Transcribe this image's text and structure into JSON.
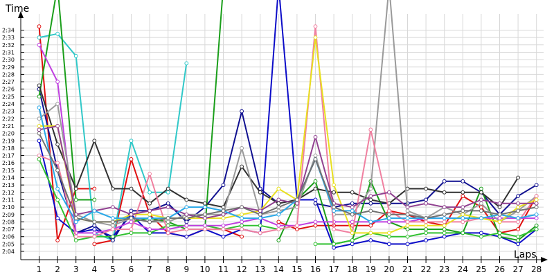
{
  "chart_data": {
    "type": "line",
    "ylabel": "Time",
    "xlabel": "Laps",
    "x_ticks": [
      "1",
      "2",
      "3",
      "4",
      "5",
      "6",
      "7",
      "8",
      "9",
      "10",
      "11",
      "12",
      "13",
      "14",
      "15",
      "16",
      "17",
      "18",
      "19",
      "20",
      "21",
      "22",
      "23",
      "24",
      "25",
      "26",
      "27",
      "28"
    ],
    "y_ticks": [
      "2:04",
      "2:05",
      "2:06",
      "2:07",
      "2:08",
      "2:09",
      "2:10",
      "2:11",
      "2:12",
      "2:13",
      "2:14",
      "2:15",
      "2:16",
      "2:17",
      "2:18",
      "2:19",
      "2:20",
      "2:21",
      "2:22",
      "2:23",
      "2:24",
      "2:25",
      "2:26",
      "2:27",
      "2:28",
      "2:29",
      "2:30",
      "2:31",
      "2:32",
      "2:33",
      "2:34"
    ],
    "y_range_seconds": [
      123,
      155
    ],
    "grid": true,
    "series": [
      {
        "color": "#e01010",
        "values": [
          154.5,
          125.5,
          132.5,
          132.5,
          null,
          null,
          null,
          null,
          null,
          null,
          null,
          null,
          null,
          null,
          null,
          null,
          null,
          null,
          null,
          null,
          null,
          null,
          null,
          null,
          null,
          null,
          null,
          null
        ]
      },
      {
        "color": "#e01010",
        "values": [
          null,
          null,
          null,
          125.0,
          125.5,
          136.5,
          129.0,
          126.5,
          126.0,
          127.0,
          127.0,
          126.0,
          null,
          128.0,
          127.0,
          127.5,
          127.5,
          127.5,
          127.5,
          129.5,
          129.0,
          128.0,
          127.5,
          131.5,
          130.0,
          126.5,
          127.0,
          131.5
        ]
      },
      {
        "color": "#30c8c8",
        "values": [
          153.0,
          153.5,
          150.5,
          126.5,
          125.5,
          139.0,
          132.0,
          132.0,
          149.5,
          null,
          null,
          null,
          null,
          null,
          null,
          null,
          null,
          null,
          null,
          null,
          null,
          null,
          null,
          null,
          null,
          null,
          null,
          null
        ]
      },
      {
        "color": "#0c0cc8",
        "values": [
          139.0,
          128.5,
          126.5,
          127.0,
          126.0,
          129.0,
          126.5,
          126.5,
          126.0,
          127.0,
          126.0,
          127.0,
          126.5,
          160.0,
          131.0,
          131.0,
          124.5,
          125.0,
          125.5,
          125.0,
          125.0,
          125.5,
          126.0,
          126.5,
          126.5,
          126.0,
          125.0,
          127.0
        ]
      },
      {
        "color": "#101090",
        "values": [
          146.0,
          135.0,
          126.5,
          127.5,
          125.5,
          129.5,
          129.5,
          130.5,
          128.0,
          130.0,
          133.0,
          143.0,
          132.5,
          130.5,
          null,
          130.5,
          130.0,
          130.5,
          130.5,
          130.5,
          130.5,
          131.0,
          133.5,
          133.5,
          132.0,
          129.0,
          131.5,
          133.0
        ]
      },
      {
        "color": "#1a9e1a",
        "values": [
          145.0,
          160.0,
          131.0,
          131.0,
          null,
          128.0,
          128.5,
          128.0,
          127.0,
          127.0,
          160.0,
          160.0,
          null,
          125.5,
          131.0,
          133.5,
          125.0,
          125.5,
          133.5,
          128.0,
          127.0,
          127.0,
          127.0,
          126.5,
          132.5,
          126.0,
          125.5,
          127.5
        ]
      },
      {
        "color": "#30c030",
        "values": [
          136.5,
          131.0,
          125.5,
          126.0,
          126.0,
          126.5,
          126.5,
          127.5,
          127.5,
          127.5,
          127.0,
          127.5,
          127.5,
          127.0,
          null,
          125.0,
          125.0,
          125.5,
          126.5,
          126.0,
          126.0,
          126.5,
          126.5,
          126.5,
          126.0,
          126.5,
          126.0,
          127.0
        ]
      },
      {
        "color": "#c040e0",
        "values": [
          152.0,
          147.0,
          126.5,
          126.5,
          127.0,
          128.0,
          127.0,
          127.0,
          127.5,
          127.5,
          127.5,
          128.0,
          128.5,
          127.5,
          127.5,
          128.0,
          128.0,
          128.0,
          128.0,
          128.0,
          128.0,
          128.5,
          128.5,
          128.5,
          128.5,
          128.5,
          128.5,
          128.5
        ]
      },
      {
        "color": "#303030",
        "values": [
          146.5,
          138.5,
          132.5,
          139.0,
          132.5,
          132.5,
          130.5,
          132.5,
          131.0,
          130.5,
          130.0,
          135.5,
          132.0,
          130.5,
          131.0,
          132.5,
          132.0,
          132.0,
          131.0,
          130.5,
          132.5,
          132.5,
          132.0,
          132.0,
          132.0,
          130.0,
          134.0,
          null
        ]
      },
      {
        "color": "#9a9a9a",
        "values": [
          142.0,
          144.0,
          129.0,
          128.0,
          127.5,
          128.5,
          128.0,
          128.0,
          129.0,
          129.0,
          129.0,
          138.0,
          129.0,
          129.5,
          130.0,
          137.0,
          129.0,
          129.0,
          132.5,
          160.0,
          129.5,
          128.5,
          130.0,
          129.0,
          130.5,
          128.0,
          129.5,
          131.5
        ]
      },
      {
        "color": "#f080a0",
        "values": [
          137.0,
          136.0,
          126.0,
          126.0,
          127.0,
          127.0,
          134.5,
          126.5,
          127.0,
          127.0,
          127.0,
          127.0,
          126.5,
          127.0,
          127.5,
          154.5,
          127.0,
          126.5,
          140.5,
          129.5,
          128.0,
          128.0,
          128.0,
          128.0,
          128.5,
          128.0,
          128.0,
          131.5
        ]
      },
      {
        "color": "#e8e020",
        "values": [
          141.0,
          141.0,
          128.5,
          128.0,
          128.0,
          129.0,
          129.0,
          128.5,
          128.5,
          128.5,
          128.5,
          129.0,
          129.5,
          132.5,
          131.0,
          153.0,
          133.0,
          126.5,
          126.5,
          126.5,
          127.5,
          127.5,
          127.5,
          129.0,
          128.5,
          128.0,
          130.0,
          131.0
        ]
      },
      {
        "color": "#904090",
        "values": [
          140.5,
          141.0,
          129.0,
          129.5,
          130.0,
          129.0,
          129.5,
          130.0,
          129.0,
          128.5,
          129.0,
          130.0,
          129.5,
          131.0,
          130.5,
          139.5,
          130.5,
          130.0,
          131.5,
          132.0,
          130.0,
          130.5,
          130.0,
          130.0,
          131.0,
          130.5,
          130.5,
          130.5
        ]
      },
      {
        "color": "#28a8e8",
        "values": [
          143.5,
          132.5,
          128.0,
          129.5,
          128.5,
          128.5,
          128.5,
          128.5,
          130.0,
          130.0,
          129.5,
          128.5,
          128.5,
          129.0,
          131.0,
          136.5,
          129.5,
          129.5,
          128.0,
          128.5,
          128.5,
          128.5,
          128.5,
          128.5,
          128.5,
          129.0,
          128.5,
          129.0
        ]
      },
      {
        "color": "#707070",
        "values": [
          140.0,
          135.0,
          128.5,
          128.0,
          128.0,
          128.5,
          128.0,
          128.5,
          128.5,
          129.0,
          129.5,
          130.0,
          129.0,
          130.0,
          131.0,
          136.5,
          130.0,
          129.0,
          129.5,
          129.0,
          129.0,
          128.5,
          129.0,
          129.5,
          129.5,
          129.0,
          129.5,
          130.0
        ]
      }
    ]
  }
}
